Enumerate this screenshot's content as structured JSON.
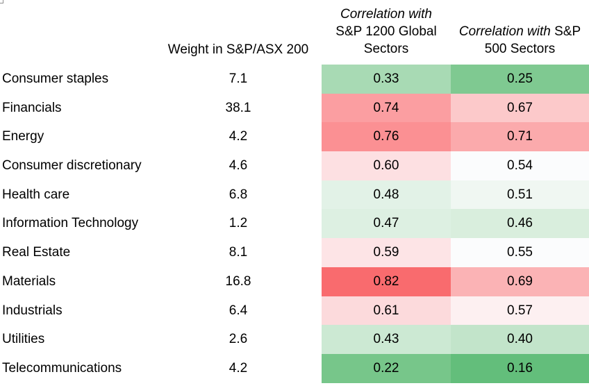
{
  "chart_data": {
    "type": "table",
    "columns": {
      "sector": "",
      "weight_line1": "Weight in S&P/ASX 200",
      "global_line1": "Correlation with",
      "global_line2": "S&P 1200 Global",
      "global_line3": "Sectors",
      "sp500_line1_italic": "Correlation with",
      "sp500_line1_rest": " S&P",
      "sp500_line2": "500 Sectors"
    },
    "rows": [
      {
        "sector": "Consumer staples",
        "weight": "7.1",
        "global": "0.33",
        "sp500": "0.25",
        "global_color": "#a8dab4",
        "sp500_color": "#7fc991"
      },
      {
        "sector": "Financials",
        "weight": "38.1",
        "global": "0.74",
        "sp500": "0.67",
        "global_color": "#fb9ea1",
        "sp500_color": "#fcc9ca"
      },
      {
        "sector": "Energy",
        "weight": "4.2",
        "global": "0.76",
        "sp500": "0.71",
        "global_color": "#fb9093",
        "sp500_color": "#fbaaac"
      },
      {
        "sector": "Consumer discretionary",
        "weight": "4.6",
        "global": "0.60",
        "sp500": "0.54",
        "global_color": "#fde0e2",
        "sp500_color": "#fbfcfd"
      },
      {
        "sector": "Health care",
        "weight": "6.8",
        "global": "0.48",
        "sp500": "0.51",
        "global_color": "#e2f2e7",
        "sp500_color": "#f0f7f2"
      },
      {
        "sector": "Information Technology",
        "weight": "1.2",
        "global": "0.47",
        "sp500": "0.46",
        "global_color": "#ddf0e2",
        "sp500_color": "#d9eedd"
      },
      {
        "sector": "Real Estate",
        "weight": "8.1",
        "global": "0.59",
        "sp500": "0.55",
        "global_color": "#fde4e6",
        "sp500_color": "#fbfcfd"
      },
      {
        "sector": "Materials",
        "weight": "16.8",
        "global": "0.82",
        "sp500": "0.69",
        "global_color": "#f96b6e",
        "sp500_color": "#fbb3b5"
      },
      {
        "sector": "Industrials",
        "weight": "6.4",
        "global": "0.61",
        "sp500": "0.57",
        "global_color": "#fcdadc",
        "sp500_color": "#fdf0f1"
      },
      {
        "sector": "Utilities",
        "weight": "2.6",
        "global": "0.43",
        "sp500": "0.40",
        "global_color": "#cce9d3",
        "sp500_color": "#c2e4ca"
      },
      {
        "sector": "Telecommunications",
        "weight": "4.2",
        "global": "0.22",
        "sp500": "0.16",
        "global_color": "#77c68a",
        "sp500_color": "#63be7b"
      }
    ]
  }
}
